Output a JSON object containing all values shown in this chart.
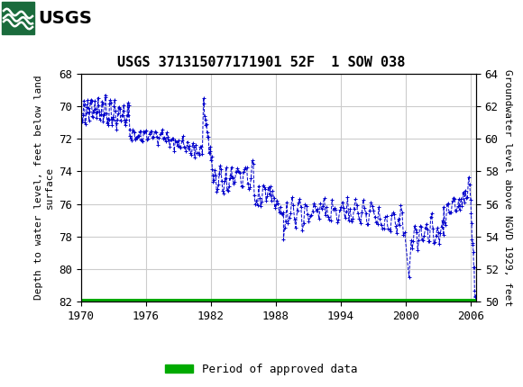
{
  "title": "USGS 371315077171901 52F  1 SOW 038",
  "ylabel_left": "Depth to water level, feet below land\nsurface",
  "ylabel_right": "Groundwater level above NGVD 1929, feet",
  "ylim_left": [
    82,
    68
  ],
  "ylim_right": [
    50,
    64
  ],
  "xlim": [
    1970,
    2006.5
  ],
  "xticks": [
    1970,
    1976,
    1982,
    1988,
    1994,
    2000,
    2006
  ],
  "yticks_left": [
    68,
    70,
    72,
    74,
    76,
    78,
    80,
    82
  ],
  "yticks_right": [
    50,
    52,
    54,
    56,
    58,
    60,
    62,
    64
  ],
  "header_color": "#1a6b3c",
  "data_color": "#0000CC",
  "approved_color": "#00AA00",
  "grid_color": "#cccccc",
  "background_color": "#ffffff",
  "legend_label": "Period of approved data",
  "title_fontsize": 11,
  "tick_fontsize": 9,
  "label_fontsize": 8
}
